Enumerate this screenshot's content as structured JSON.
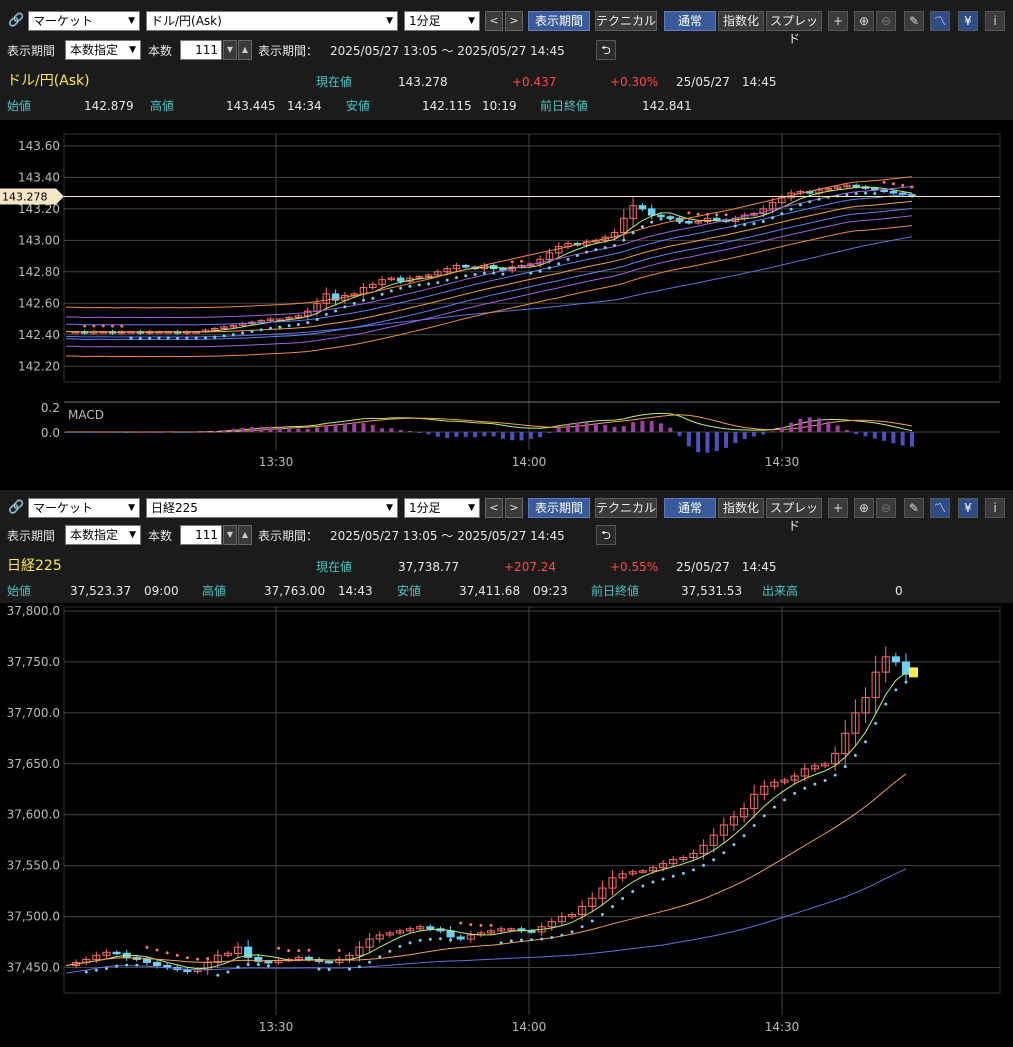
{
  "panels": [
    {
      "market": "マーケット",
      "instrument": "ドル/円(Ask)",
      "interval": "1分足",
      "period_tab": "表示期間",
      "technical_tab": "テクニカル",
      "mode_normal": "通常",
      "mode_index": "指数化",
      "mode_spread": "スプレッド",
      "period_label": "表示期間",
      "period_mode": "本数指定",
      "bars_label": "本数",
      "bars_value": "111",
      "range_label": "表示期間：",
      "range_value": "2025/05/27 13:05 ～ 2025/05/27 14:45",
      "name": "ドル/円(Ask)",
      "current_label": "現在値",
      "current_value": "143.278",
      "change": "+0.437",
      "change_pct": "+0.30%",
      "datetime": "25/05/27　14:45",
      "open_label": "始値",
      "open_value": "142.879",
      "high_label": "高値",
      "high_value": "143.445",
      "high_time": "14:34",
      "low_label": "安値",
      "low_value": "142.115",
      "low_time": "10:19",
      "prev_label": "前日終値",
      "prev_value": "142.841",
      "price_tag": "143.278",
      "macd_label": "MACD"
    },
    {
      "market": "マーケット",
      "instrument": "日経225",
      "interval": "1分足",
      "period_tab": "表示期間",
      "technical_tab": "テクニカル",
      "mode_normal": "通常",
      "mode_index": "指数化",
      "mode_spread": "スプレッド",
      "period_label": "表示期間",
      "period_mode": "本数指定",
      "bars_label": "本数",
      "bars_value": "111",
      "range_label": "表示期間：",
      "range_value": "2025/05/27 13:05 ～ 2025/05/27 14:45",
      "name": "日経225",
      "current_label": "現在値",
      "current_value": "37,738.77",
      "change": "+207.24",
      "change_pct": "+0.55%",
      "datetime": "25/05/27　14:45",
      "open_label": "始値",
      "open_value": "37,523.37",
      "open_time": "09:00",
      "high_label": "高値",
      "high_value": "37,763.00",
      "high_time": "14:43",
      "low_label": "安値",
      "low_value": "37,411.68",
      "low_time": "09:23",
      "prev_label": "前日終値",
      "prev_value": "37,531.53",
      "volume_label": "出来高",
      "volume_value": "0"
    }
  ],
  "chart_data": [
    {
      "type": "candlestick",
      "instrument": "ドル/円(Ask)",
      "x_ticks": [
        "13:30",
        "14:00",
        "14:30"
      ],
      "y_ticks": [
        "143.60",
        "143.40",
        "143.20",
        "143.00",
        "142.80",
        "142.60",
        "142.40",
        "142.20"
      ],
      "ylim": [
        142.1,
        143.65
      ],
      "macd_ticks": [
        "0.2",
        "0.0"
      ],
      "close_series": [
        142.42,
        142.42,
        142.41,
        142.42,
        142.42,
        142.41,
        142.42,
        142.42,
        142.41,
        142.42,
        142.42,
        142.42,
        142.41,
        142.42,
        142.42,
        142.43,
        142.44,
        142.45,
        142.46,
        142.47,
        142.48,
        142.49,
        142.5,
        142.5,
        142.51,
        142.52,
        142.55,
        142.6,
        142.66,
        142.62,
        142.65,
        142.66,
        142.7,
        142.72,
        142.75,
        142.76,
        142.74,
        142.76,
        142.77,
        142.78,
        142.8,
        142.82,
        142.84,
        142.83,
        142.82,
        142.84,
        142.82,
        142.81,
        142.83,
        142.84,
        142.85,
        142.88,
        142.92,
        142.96,
        142.98,
        142.97,
        142.99,
        143.0,
        143.02,
        143.05,
        143.14,
        143.22,
        143.2,
        143.16,
        143.15,
        143.14,
        143.12,
        143.11,
        143.12,
        143.14,
        143.13,
        143.12,
        143.14,
        143.16,
        143.17,
        143.2,
        143.24,
        143.27,
        143.3,
        143.31,
        143.3,
        143.32,
        143.33,
        143.34,
        143.35,
        143.34,
        143.33,
        143.32,
        143.31,
        143.3,
        143.29,
        143.28
      ]
    },
    {
      "type": "candlestick",
      "instrument": "日経225",
      "x_ticks": [
        "13:30",
        "14:00",
        "14:30"
      ],
      "y_ticks": [
        "37,800.0",
        "37,750.0",
        "37,700.0",
        "37,650.0",
        "37,600.0",
        "37,550.0",
        "37,500.0",
        "37,450.0"
      ],
      "ylim": [
        37425,
        37800
      ],
      "close_series": [
        37452,
        37455,
        37458,
        37462,
        37465,
        37464,
        37460,
        37458,
        37455,
        37452,
        37450,
        37448,
        37446,
        37448,
        37455,
        37462,
        37464,
        37470,
        37460,
        37456,
        37455,
        37457,
        37458,
        37460,
        37458,
        37456,
        37455,
        37458,
        37462,
        37470,
        37478,
        37482,
        37484,
        37486,
        37488,
        37490,
        37488,
        37486,
        37480,
        37478,
        37482,
        37484,
        37486,
        37488,
        37488,
        37486,
        37485,
        37490,
        37495,
        37500,
        37502,
        37510,
        37518,
        37528,
        37538,
        37542,
        37544,
        37545,
        37548,
        37552,
        37556,
        37558,
        37562,
        37570,
        37580,
        37590,
        37598,
        37606,
        37620,
        37628,
        37632,
        37634,
        37638,
        37645,
        37648,
        37650,
        37660,
        37680,
        37700,
        37715,
        37740,
        37755,
        37750,
        37738
      ]
    }
  ],
  "colors": {
    "up_candle": "#ff6b6b",
    "down_candle": "#6fd0f0",
    "bg": "#000000",
    "grid": "#444444",
    "accent": "#ffe94a"
  }
}
